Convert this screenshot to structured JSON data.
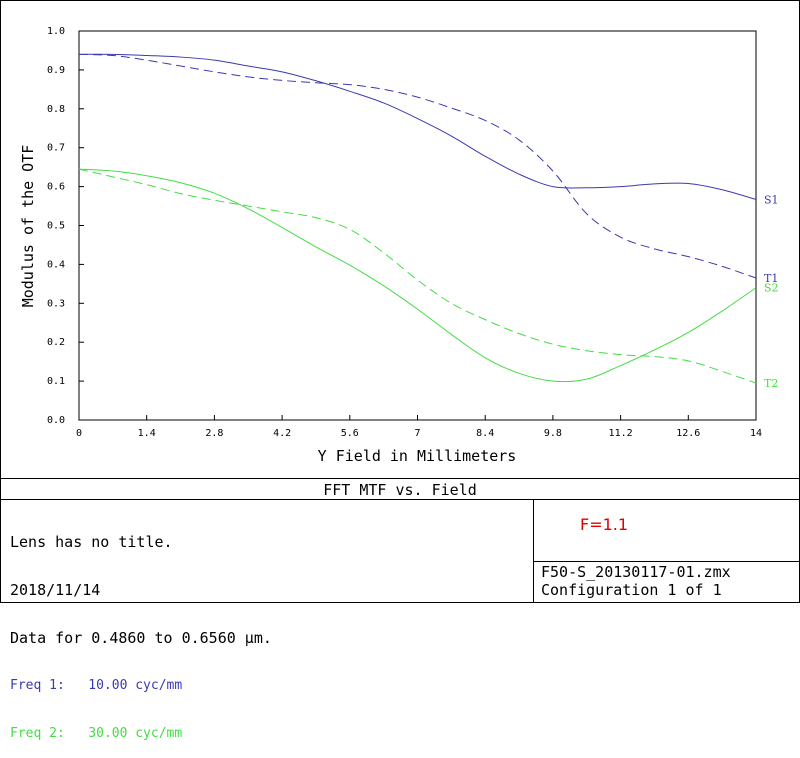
{
  "chart_data": {
    "type": "line",
    "title": "FFT MTF vs. Field",
    "xlabel": "Y Field in Millimeters",
    "ylabel": "Modulus of the OTF",
    "xlim": [
      0,
      14
    ],
    "ylim": [
      0,
      1
    ],
    "x_ticks": [
      "0",
      "1.4",
      "2.8",
      "4.2",
      "5.6",
      "7",
      "8.4",
      "9.8",
      "11.2",
      "12.6",
      "14"
    ],
    "y_ticks": [
      "0.0",
      "0.1",
      "0.2",
      "0.3",
      "0.4",
      "0.5",
      "0.6",
      "0.7",
      "0.8",
      "0.9",
      "1.0"
    ],
    "grid": false,
    "series": [
      {
        "name": "S1",
        "color": "#3a3ab0",
        "dash": false,
        "x": [
          0,
          0.7,
          1.4,
          2.1,
          2.8,
          3.5,
          4.2,
          4.9,
          5.6,
          6.3,
          7.0,
          7.7,
          8.4,
          9.1,
          9.8,
          10.5,
          11.2,
          11.9,
          12.6,
          13.3,
          14.0
        ],
        "y": [
          0.94,
          0.94,
          0.937,
          0.933,
          0.925,
          0.91,
          0.895,
          0.872,
          0.845,
          0.815,
          0.775,
          0.73,
          0.678,
          0.632,
          0.6,
          0.597,
          0.6,
          0.607,
          0.608,
          0.592,
          0.567
        ]
      },
      {
        "name": "T1",
        "color": "#3a3ab0",
        "dash": true,
        "x": [
          0,
          0.7,
          1.4,
          2.1,
          2.8,
          3.5,
          4.2,
          4.9,
          5.6,
          6.3,
          7.0,
          7.7,
          8.4,
          9.1,
          9.8,
          10.5,
          11.2,
          11.9,
          12.6,
          13.3,
          14.0
        ],
        "y": [
          0.94,
          0.937,
          0.925,
          0.91,
          0.895,
          0.882,
          0.873,
          0.867,
          0.862,
          0.85,
          0.83,
          0.802,
          0.77,
          0.72,
          0.64,
          0.53,
          0.47,
          0.44,
          0.42,
          0.395,
          0.365
        ]
      },
      {
        "name": "S2",
        "color": "#44dd44",
        "dash": false,
        "x": [
          0,
          0.7,
          1.4,
          2.1,
          2.8,
          3.5,
          4.2,
          4.9,
          5.6,
          6.3,
          7.0,
          7.7,
          8.4,
          9.1,
          9.8,
          10.5,
          11.2,
          11.9,
          12.6,
          13.3,
          14.0
        ],
        "y": [
          0.645,
          0.64,
          0.628,
          0.61,
          0.583,
          0.543,
          0.495,
          0.445,
          0.398,
          0.345,
          0.285,
          0.22,
          0.16,
          0.12,
          0.1,
          0.105,
          0.14,
          0.18,
          0.225,
          0.28,
          0.34
        ]
      },
      {
        "name": "T2",
        "color": "#44dd44",
        "dash": true,
        "x": [
          0,
          0.7,
          1.4,
          2.1,
          2.8,
          3.5,
          4.2,
          4.9,
          5.6,
          6.3,
          7.0,
          7.7,
          8.4,
          9.1,
          9.8,
          10.5,
          11.2,
          11.9,
          12.6,
          13.3,
          14.0
        ],
        "y": [
          0.645,
          0.625,
          0.605,
          0.582,
          0.565,
          0.55,
          0.535,
          0.52,
          0.49,
          0.43,
          0.36,
          0.3,
          0.258,
          0.222,
          0.195,
          0.178,
          0.168,
          0.163,
          0.152,
          0.125,
          0.095
        ]
      }
    ]
  },
  "info": {
    "line1": "Lens has no title.",
    "line2": "2018/11/14",
    "line3": "Data for 0.4860 to 0.6560 µm.",
    "freq1": "Freq 1:   10.00 cyc/mm",
    "freq2": "Freq 2:   30.00 cyc/mm"
  },
  "note": "F=1.1",
  "file": {
    "name": "F50-S_20130117-01.zmx",
    "config": "Configuration 1 of 1"
  }
}
